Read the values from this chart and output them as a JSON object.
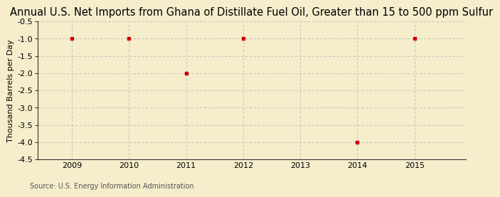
{
  "title": "Annual U.S. Net Imports from Ghana of Distillate Fuel Oil, Greater than 15 to 500 ppm Sulfur",
  "ylabel": "Thousand Barrels per Day",
  "source": "Source: U.S. Energy Information Administration",
  "x_data": [
    2009,
    2010,
    2011,
    2012,
    2014,
    2015
  ],
  "y_data": [
    -1.0,
    -1.0,
    -2.0,
    -1.0,
    -4.0,
    -1.0
  ],
  "xlim": [
    2008.4,
    2015.9
  ],
  "ylim": [
    -4.5,
    -0.5
  ],
  "yticks": [
    -0.5,
    -1.0,
    -1.5,
    -2.0,
    -2.5,
    -3.0,
    -3.5,
    -4.0,
    -4.5
  ],
  "xticks": [
    2009,
    2010,
    2011,
    2012,
    2013,
    2014,
    2015
  ],
  "background_color": "#F5EDCC",
  "plot_bg_color": "#F5EDCC",
  "marker_color": "#CC0000",
  "grid_color": "#BBBBBB",
  "spine_color": "#333333",
  "title_fontsize": 10.5,
  "label_fontsize": 8,
  "tick_fontsize": 8,
  "source_fontsize": 7
}
